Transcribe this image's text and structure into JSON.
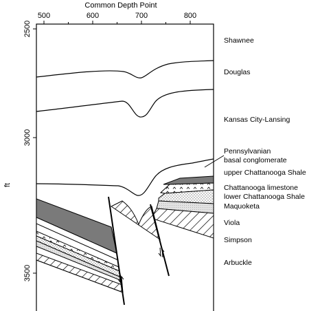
{
  "figure": {
    "x_axis_title": "Common Depth Point",
    "x_ticks": [
      "500",
      "600",
      "700",
      "800"
    ],
    "y_axis_title": "ft",
    "y_ticks": [
      "2500",
      "3000",
      "3500"
    ]
  },
  "formations": [
    {
      "id": "shawnee",
      "label": "Shawnee"
    },
    {
      "id": "douglas",
      "label": "Douglas"
    },
    {
      "id": "kansas-city-lansing",
      "label": "Kansas City-Lansing"
    },
    {
      "id": "pennsylvanian-1",
      "label": "Pennsylvanian"
    },
    {
      "id": "pennsylvanian-2",
      "label": "basal conglomerate"
    },
    {
      "id": "upper-chattanooga",
      "label": "upper  Chattanooga Shale"
    },
    {
      "id": "chattanooga-limestone",
      "label": "Chattanooga limestone"
    },
    {
      "id": "lower-chattanooga",
      "label": "lower Chattanooga Shale"
    },
    {
      "id": "maquoketa",
      "label": "Maquoketa"
    },
    {
      "id": "viola",
      "label": "Viola"
    },
    {
      "id": "simpson",
      "label": "Simpson"
    },
    {
      "id": "arbuckle",
      "label": "Arbuckle"
    }
  ],
  "colors": {
    "ink": "#000000",
    "dark_fill": "#7a7a7a",
    "light_fill": "#d6d6d6",
    "background": "#ffffff"
  }
}
